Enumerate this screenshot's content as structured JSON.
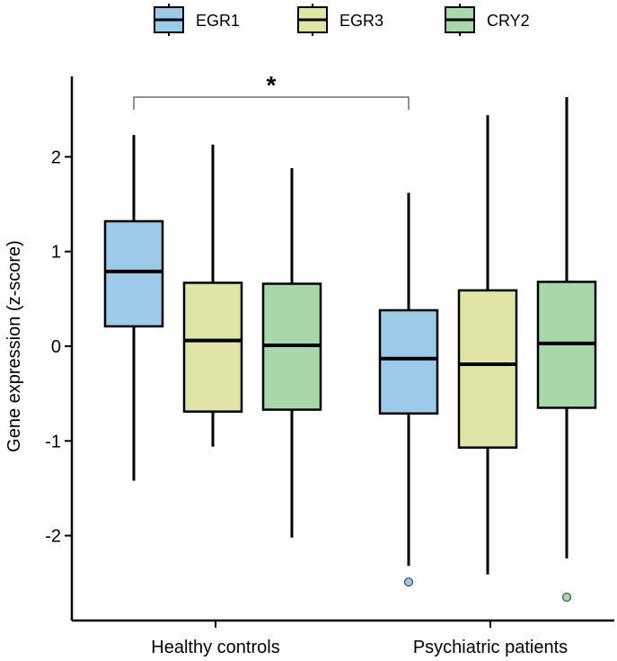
{
  "chart_data": {
    "type": "boxplot",
    "xlabel": "",
    "ylabel": "Gene expression (z-score)",
    "ylim": [
      -2.85,
      2.85
    ],
    "yticks": [
      -2,
      -1,
      0,
      1,
      2
    ],
    "ytick_labels": [
      "-2",
      "-1",
      "0",
      "1",
      "2"
    ],
    "categories": [
      "Healthy controls",
      "Psychiatric patients"
    ],
    "legend": {
      "position": "top",
      "entries": [
        "EGR1",
        "EGR3",
        "CRY2"
      ]
    },
    "series": [
      {
        "name": "EGR1",
        "color": "#9ecae9",
        "boxes": [
          {
            "whisker_low": -1.42,
            "q1": 0.21,
            "median": 0.79,
            "q3": 1.32,
            "whisker_high": 2.23,
            "outliers": []
          },
          {
            "whisker_low": -2.32,
            "q1": -0.71,
            "median": -0.13,
            "q3": 0.38,
            "whisker_high": 1.62,
            "outliers": [
              -2.49
            ]
          }
        ]
      },
      {
        "name": "EGR3",
        "color": "#e0e4a6",
        "boxes": [
          {
            "whisker_low": -1.06,
            "q1": -0.69,
            "median": 0.06,
            "q3": 0.67,
            "whisker_high": 2.13,
            "outliers": []
          },
          {
            "whisker_low": -2.41,
            "q1": -1.07,
            "median": -0.19,
            "q3": 0.59,
            "whisker_high": 2.44,
            "outliers": []
          }
        ]
      },
      {
        "name": "CRY2",
        "color": "#a8d7aa",
        "boxes": [
          {
            "whisker_low": -2.02,
            "q1": -0.67,
            "median": 0.01,
            "q3": 0.66,
            "whisker_high": 1.88,
            "outliers": []
          },
          {
            "whisker_low": -2.24,
            "q1": -0.65,
            "median": 0.03,
            "q3": 0.68,
            "whisker_high": 2.63,
            "outliers": [
              -2.65
            ]
          }
        ]
      }
    ],
    "annotations": [
      {
        "text": "*",
        "type": "significance-bracket",
        "from": "Healthy controls / EGR1",
        "to": "Psychiatric patients / EGR1"
      }
    ]
  }
}
